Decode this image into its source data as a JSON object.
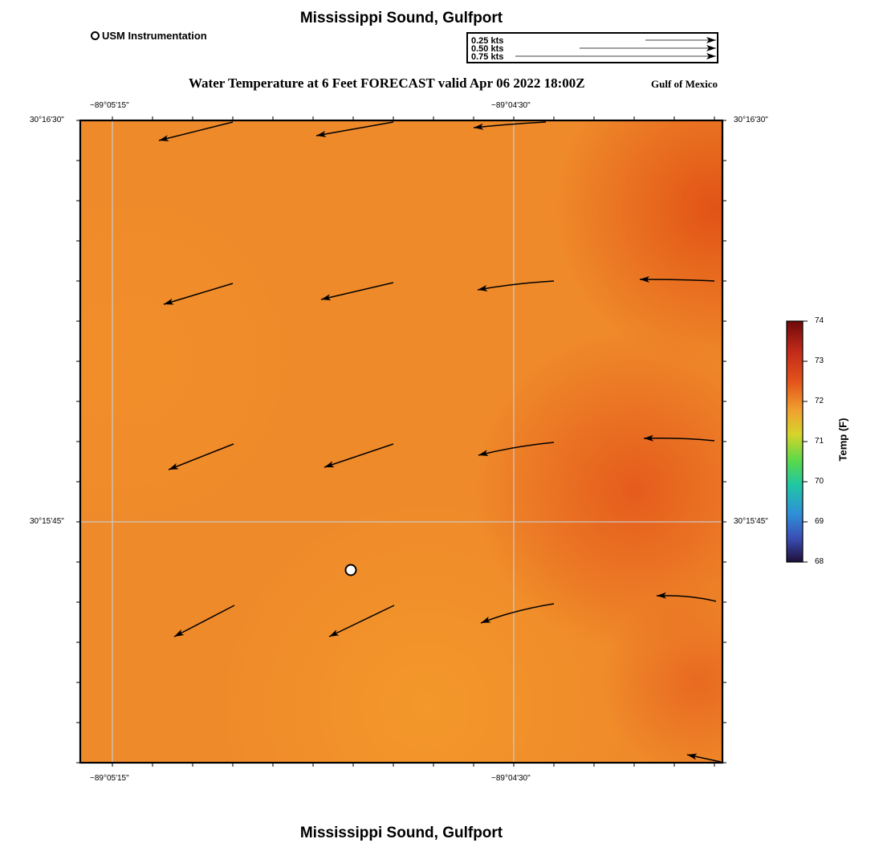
{
  "header": {
    "title": "Mississippi Sound, Gulfport",
    "bottom_title": "Mississippi Sound, Gulfport",
    "subtitle": "Water Temperature at 6 Feet FORECAST valid Apr 06 2022 18:00Z",
    "region": "Gulf of Mexico"
  },
  "legend": {
    "station_label": "USM Instrumentation",
    "speed_scale": [
      "0.25 kts",
      "0.50 kts",
      "0.75 kts"
    ],
    "speed_values": [
      0.25,
      0.5,
      0.75
    ]
  },
  "axes": {
    "lon_labels": [
      "−89°05'15\"",
      "−89°04'30\""
    ],
    "lat_labels": [
      "30°16'30\"",
      "30°15'45\""
    ]
  },
  "colorbar": {
    "label": "Temp (F)",
    "ticks": [
      "74",
      "73",
      "72",
      "71",
      "70",
      "69",
      "68"
    ],
    "min": 68,
    "max": 74
  },
  "colors": {
    "field_base": "#ef8a2a",
    "field_warm": "#e3531a",
    "field_light": "#f39428",
    "grid": "#c8c8c8",
    "arrow": "#000000"
  },
  "map_data": {
    "field": "water_temperature_6ft",
    "units": "F",
    "station_count": 1
  }
}
